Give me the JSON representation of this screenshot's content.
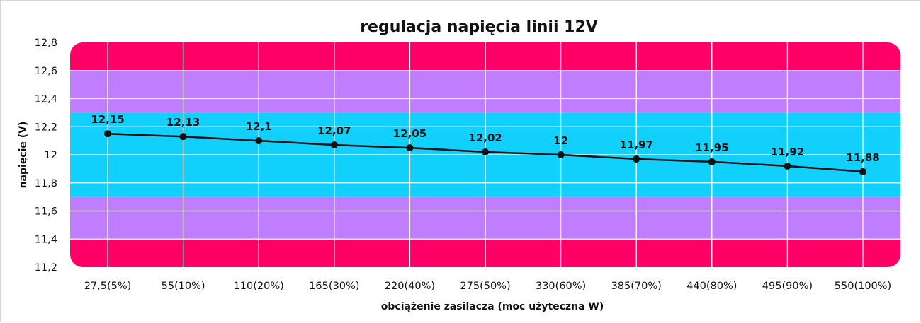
{
  "chart_data": {
    "type": "line",
    "title": "regulacja napięcia linii 12V",
    "xlabel": "obciążenie zasilacza (moc użyteczna W)",
    "ylabel": "napięcie (V)",
    "categories": [
      "27,5(5%)",
      "55(10%)",
      "110(20%)",
      "165(30%)",
      "220(40%)",
      "275(50%)",
      "330(60%)",
      "385(70%)",
      "440(80%)",
      "495(90%)",
      "550(100%)"
    ],
    "series": [
      {
        "values": [
          12.15,
          12.13,
          12.1,
          12.07,
          12.05,
          12.02,
          12.0,
          11.97,
          11.95,
          11.92,
          11.88
        ]
      }
    ],
    "data_labels": [
      "12,15",
      "12,13",
      "12,1",
      "12,07",
      "12,05",
      "12,02",
      "12",
      "11,97",
      "11,95",
      "11,92",
      "11,88"
    ],
    "ylim": [
      11.2,
      12.8
    ],
    "yticks": [
      11.2,
      11.4,
      11.6,
      11.8,
      12.0,
      12.2,
      12.4,
      12.6,
      12.8
    ],
    "ytick_labels": [
      "11,2",
      "11,4",
      "11,6",
      "11,8",
      "12",
      "12,2",
      "12,4",
      "12,6",
      "12,8"
    ],
    "grid": true,
    "legend": "none",
    "bands": [
      {
        "from": 11.2,
        "to": 11.4,
        "color": "#ff0066"
      },
      {
        "from": 11.4,
        "to": 11.7,
        "color": "#c17dff"
      },
      {
        "from": 11.7,
        "to": 12.3,
        "color": "#12d0fc"
      },
      {
        "from": 12.3,
        "to": 12.6,
        "color": "#c17dff"
      },
      {
        "from": 12.6,
        "to": 12.8,
        "color": "#ff0066"
      }
    ],
    "line_color": "#111111"
  }
}
